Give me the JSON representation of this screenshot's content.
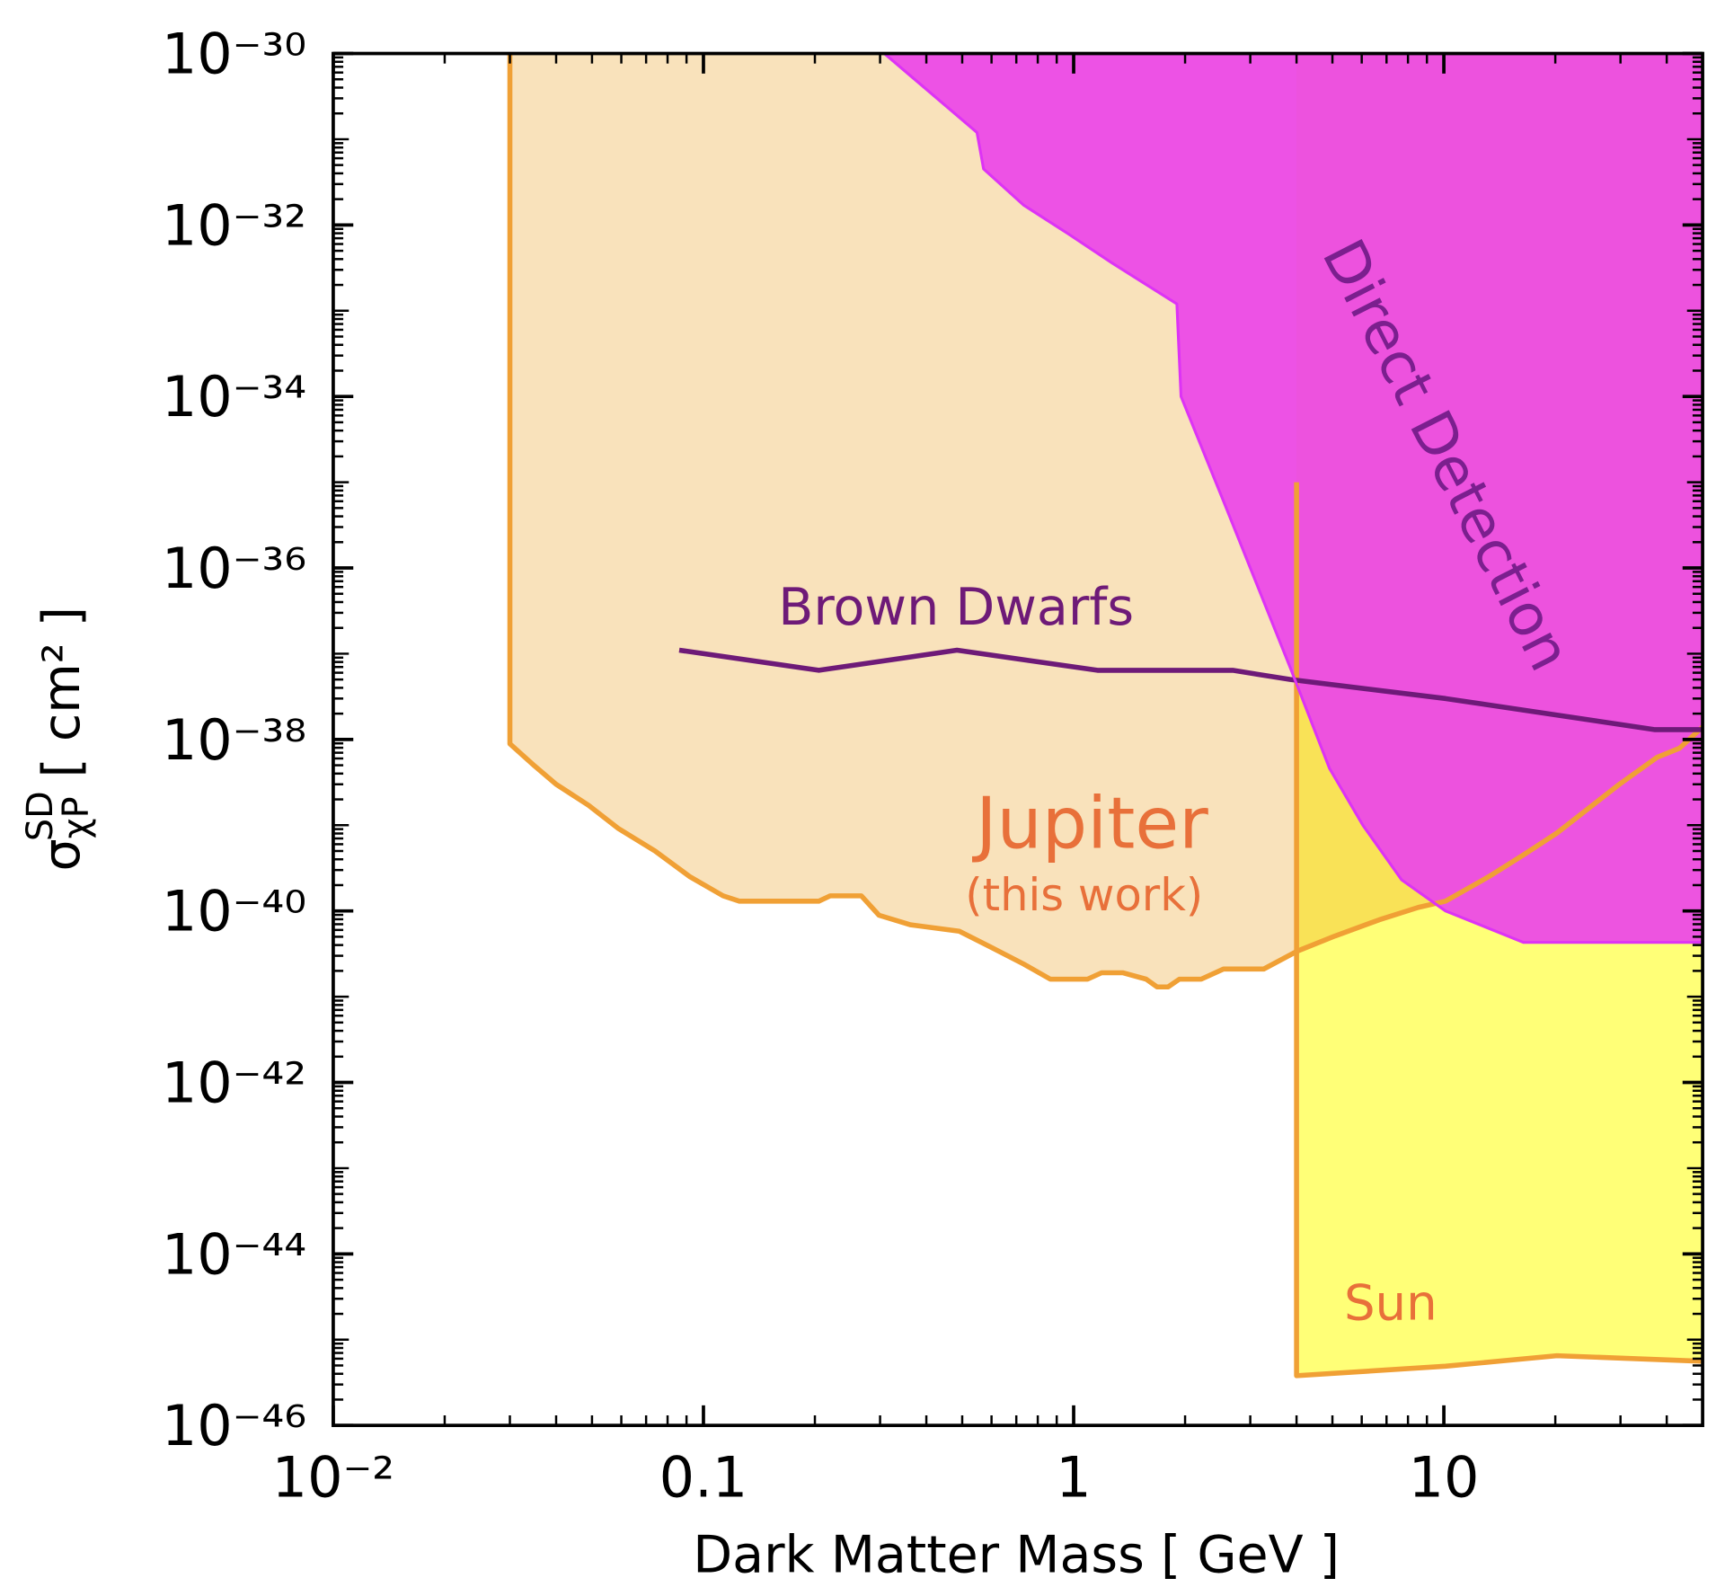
{
  "chart_data": {
    "type": "area",
    "xlabel": "Dark Matter Mass [ GeV ]",
    "ylabel": {
      "symbol": "σ",
      "subscript": "χP",
      "superscript": "SD",
      "unit": "[ cm² ]"
    },
    "xscale": "log",
    "yscale": "log",
    "xlim": [
      0.01,
      50
    ],
    "ylim": [
      1e-46,
      1e-30
    ],
    "xticks": [
      {
        "value": 0.01,
        "label": "10⁻²"
      },
      0.1,
      1,
      10
    ],
    "yticks": [
      {
        "value": 1e-30,
        "label": "10⁻³⁰"
      },
      {
        "value": 1e-32,
        "label": "10⁻³²"
      },
      {
        "value": 1e-34,
        "label": "10⁻³⁴"
      },
      {
        "value": 1e-36,
        "label": "10⁻³⁶"
      },
      {
        "value": 1e-38,
        "label": "10⁻³⁸"
      },
      {
        "value": 1e-40,
        "label": "10⁻⁴⁰"
      },
      {
        "value": 1e-42,
        "label": "10⁻⁴²"
      },
      {
        "value": 1e-44,
        "label": "10⁻⁴⁴"
      },
      {
        "value": 1e-46,
        "label": "10⁻⁴⁶"
      }
    ],
    "minor_ticks": true,
    "tick_direction": "in",
    "series": [
      {
        "name": "Sun",
        "color": "#f0a035",
        "fill": "#ffff77",
        "label_color": "#e8703a",
        "x": [
          4.0,
          4.0,
          10.1,
          20.2,
          50
        ],
        "values": [
          1e-35,
          3.8e-46,
          4.9e-46,
          6.5e-46,
          5.6e-46
        ]
      },
      {
        "name": "Jupiter",
        "annotation": "(this work)",
        "color": "#f0a035",
        "fill": "#f9e2bb",
        "label_color": "#e8703a",
        "x": [
          0.03,
          0.03,
          0.035,
          0.04,
          0.049,
          0.059,
          0.074,
          0.092,
          0.113,
          0.125,
          0.205,
          0.22,
          0.267,
          0.298,
          0.362,
          0.491,
          0.596,
          0.733,
          0.865,
          1.09,
          1.19,
          1.36,
          1.57,
          1.68,
          1.8,
          1.93,
          2.21,
          2.54,
          3.26,
          4.02,
          5.08,
          6.7,
          8.53,
          10.1,
          13.2,
          16.4,
          20.2,
          29.8,
          37.7,
          43.3,
          50
        ],
        "values": [
          1e-30,
          8.9e-39,
          4.9e-39,
          3e-39,
          1.7e-39,
          9.1e-40,
          5e-40,
          2.5e-40,
          1.5e-40,
          1.3e-40,
          1.3e-40,
          1.5e-40,
          1.5e-40,
          8.9e-41,
          6.9e-41,
          5.8e-41,
          3.8e-41,
          2.4e-41,
          1.6e-41,
          1.6e-41,
          1.9e-41,
          1.9e-41,
          1.6e-41,
          1.3e-41,
          1.3e-41,
          1.6e-41,
          1.6e-41,
          2.1e-41,
          2.1e-41,
          3.4e-41,
          5.1e-41,
          7.9e-41,
          1.1e-40,
          1.3e-40,
          2.5e-40,
          4.5e-40,
          8.1e-40,
          3e-39,
          6.2e-39,
          7.9e-39,
          1.4e-38
        ]
      },
      {
        "name": "Brown Dwarfs",
        "color": "#6e1a78",
        "label_color": "#6e1a78",
        "x": [
          0.086,
          0.205,
          0.484,
          1.16,
          2.69,
          3.85,
          10.1,
          37.2,
          50
        ],
        "values": [
          1.1e-37,
          6.4e-38,
          1.1e-37,
          6.4e-38,
          6.4e-38,
          5e-38,
          3e-38,
          1.3e-38,
          1.3e-38
        ]
      },
      {
        "name": "Direct Detection",
        "color": "#dd33f5",
        "fill": "#ec47e8",
        "label_color": "#7b1f8e",
        "x": [
          0.308,
          0.548,
          0.571,
          0.733,
          0.966,
          1.27,
          1.9,
          1.95,
          2.54,
          3.85,
          4.91,
          6.04,
          7.69,
          10.1,
          16.4,
          50
        ],
        "values": [
          1e-30,
          1.2e-31,
          4.5e-32,
          1.7e-32,
          7.9e-33,
          3.6e-33,
          1.2e-33,
          1e-34,
          6e-36,
          6.8e-38,
          4.6e-39,
          1e-39,
          2.3e-40,
          1e-40,
          4.3e-41,
          4.3e-41
        ]
      }
    ]
  }
}
